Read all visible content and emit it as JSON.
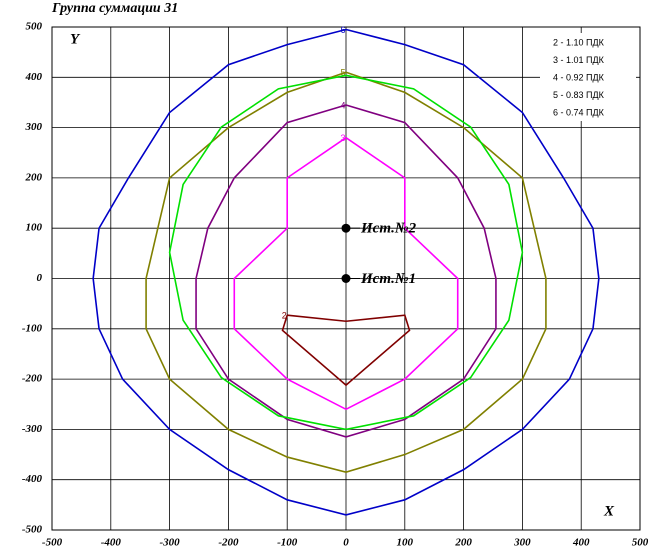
{
  "chart_data": {
    "type": "contour",
    "title": "Группа суммации 31",
    "xlabel": "X",
    "ylabel": "Y",
    "xlim": [
      -500,
      500
    ],
    "ylim": [
      -500,
      500
    ],
    "xticks": [
      -500,
      -400,
      -300,
      -200,
      -100,
      0,
      100,
      200,
      300,
      400,
      500
    ],
    "yticks": [
      -500,
      -400,
      -300,
      -200,
      -100,
      0,
      100,
      200,
      300,
      400,
      500
    ],
    "grid": true,
    "series": [
      {
        "name": "2 - 1.10 ПДК",
        "label": "2",
        "color": "#800000",
        "x": [
          -100,
          0,
          100,
          108,
          0,
          -108,
          -100
        ],
        "y": [
          -73,
          -85,
          -73,
          -103,
          -212,
          -103,
          -73
        ]
      },
      {
        "name": "3 - 1.01 ПДК",
        "label": "3",
        "color": "#ff00ff",
        "x": [
          0,
          -100,
          -100,
          -190,
          -190,
          -100,
          0,
          100,
          190,
          190,
          100,
          100,
          0
        ],
        "y": [
          280,
          200,
          100,
          0,
          -100,
          -200,
          -260,
          -200,
          -100,
          0,
          100,
          200,
          280
        ]
      },
      {
        "name": "4 - 0.92 ПДК",
        "label": "4",
        "color": "#800080",
        "x": [
          0,
          -100,
          -190,
          -235,
          -255,
          -255,
          -200,
          -100,
          0,
          100,
          200,
          255,
          255,
          235,
          190,
          100,
          0
        ],
        "y": [
          345,
          310,
          200,
          100,
          0,
          -100,
          -200,
          -280,
          -315,
          -280,
          -200,
          -100,
          0,
          100,
          200,
          310,
          345
        ]
      },
      {
        "name": "5 - 0.83 ПДК",
        "label": "5",
        "color": "#808000",
        "x": [
          0,
          -100,
          -200,
          -300,
          -320,
          -340,
          -340,
          -300,
          -200,
          -100,
          0,
          100,
          200,
          300,
          340,
          340,
          320,
          300,
          200,
          100,
          0
        ],
        "y": [
          410,
          370,
          300,
          200,
          100,
          0,
          -100,
          -200,
          -300,
          -355,
          -385,
          -350,
          -300,
          -200,
          -100,
          0,
          100,
          200,
          300,
          370,
          410
        ]
      },
      {
        "name": "6 - 0.74 ПДК",
        "label": "6",
        "color": "#0000c8",
        "x": [
          0,
          -100,
          -200,
          -300,
          -370,
          -420,
          -430,
          -420,
          -380,
          -300,
          -200,
          -100,
          0,
          100,
          200,
          300,
          380,
          420,
          430,
          420,
          370,
          300,
          200,
          100,
          0
        ],
        "y": [
          495,
          465,
          425,
          330,
          200,
          100,
          0,
          -100,
          -200,
          -300,
          -380,
          -440,
          -470,
          -440,
          -380,
          -300,
          -200,
          -100,
          0,
          100,
          200,
          330,
          425,
          465,
          495
        ]
      },
      {
        "color": "#00e000",
        "x": [
          300,
          277,
          212,
          115,
          0,
          -115,
          -212,
          -277,
          -300,
          -277,
          -212,
          -115,
          0,
          115,
          212,
          277,
          300
        ],
        "y": [
          52,
          187,
          301,
          377,
          404,
          377,
          301,
          187,
          52,
          -83,
          -197,
          -273,
          -300,
          -273,
          -197,
          -83,
          52
        ]
      }
    ],
    "points": [
      {
        "label": "Ист.№2",
        "x": 0,
        "y": 100
      },
      {
        "label": "Ист.№1",
        "x": 0,
        "y": 0
      }
    ]
  }
}
